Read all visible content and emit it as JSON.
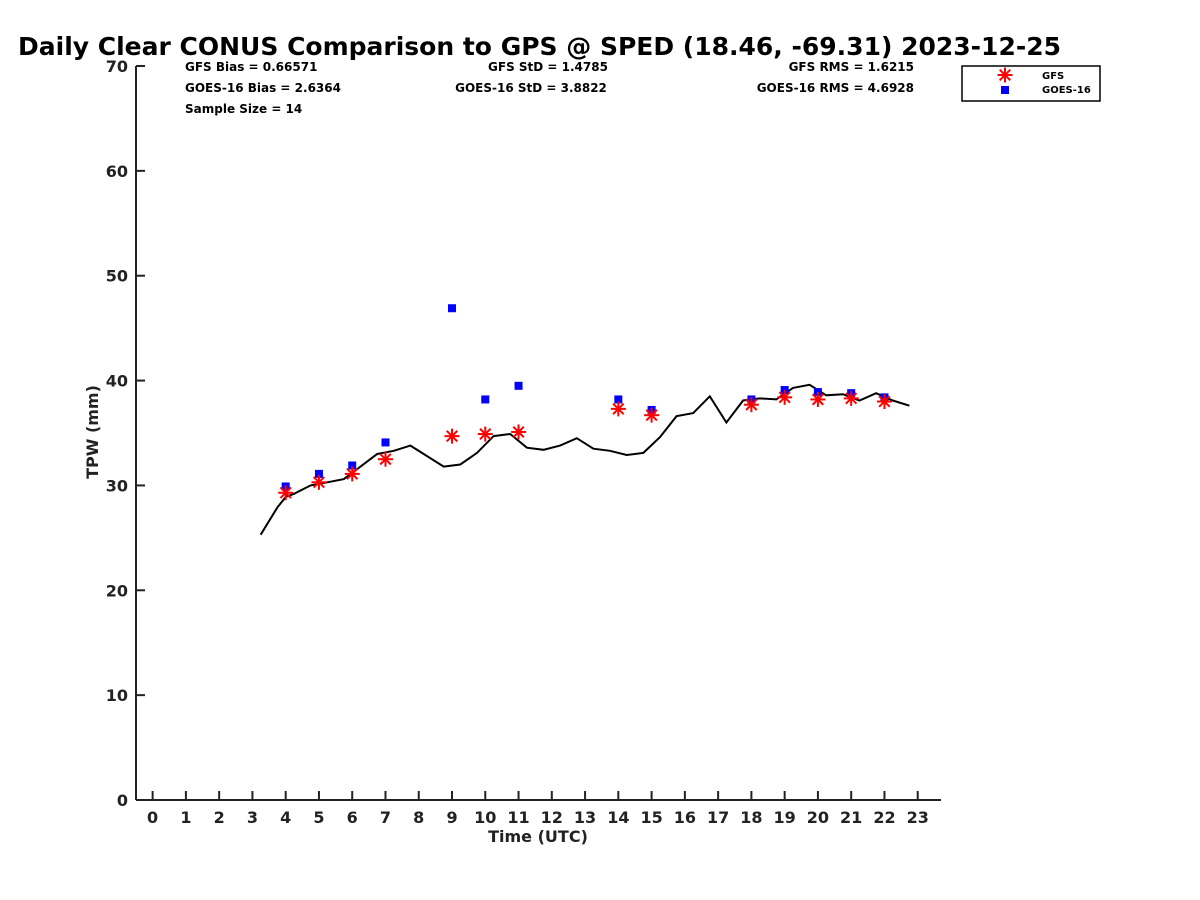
{
  "chart_data": {
    "type": "scatter",
    "title": "Daily Clear CONUS Comparison to GPS @ SPED (18.46, -69.31) 2023-12-25",
    "xlabel": "Time (UTC)",
    "ylabel": "TPW (mm)",
    "xlim": [
      -0.5,
      23.7
    ],
    "ylim": [
      0,
      70
    ],
    "x_ticks": [
      "0",
      "1",
      "2",
      "3",
      "4",
      "5",
      "6",
      "7",
      "8",
      "9",
      "10",
      "11",
      "12",
      "13",
      "14",
      "15",
      "16",
      "17",
      "18",
      "19",
      "20",
      "21",
      "22",
      "23"
    ],
    "y_ticks": [
      "0",
      "10",
      "20",
      "30",
      "40",
      "50",
      "60",
      "70"
    ],
    "grid": false,
    "legend_position": "top-right",
    "stats": {
      "gfs_bias": "GFS Bias = 0.66571",
      "goes_bias": "GOES-16 Bias = 2.6364",
      "sample_size": "Sample Size = 14",
      "gfs_std": "GFS StD = 1.4785",
      "goes_std": "GOES-16 StD = 3.8822",
      "gfs_rms": "GFS RMS = 1.6215",
      "goes_rms": "GOES-16 RMS = 4.6928"
    },
    "series": [
      {
        "name": "GFS",
        "marker": "asterisk",
        "color": "#ff0000",
        "x": [
          4,
          5,
          6,
          7,
          9,
          10,
          11,
          14,
          15,
          18,
          19,
          20,
          21,
          22
        ],
        "y": [
          29.3,
          30.3,
          31.1,
          32.5,
          34.7,
          34.9,
          35.1,
          37.3,
          36.7,
          37.7,
          38.4,
          38.2,
          38.3,
          38.0
        ]
      },
      {
        "name": "GOES-16",
        "marker": "square",
        "color": "#0000ff",
        "x": [
          4,
          5,
          6,
          7,
          9,
          10,
          11,
          14,
          15,
          18,
          19,
          20,
          21,
          22
        ],
        "y": [
          29.9,
          31.1,
          31.9,
          34.1,
          46.9,
          38.2,
          39.5,
          38.2,
          37.2,
          38.2,
          39.1,
          38.9,
          38.8,
          38.4
        ]
      },
      {
        "marker": "line",
        "color": "#000000",
        "x": [
          3.25,
          3.75,
          4.0,
          4.25,
          4.75,
          5.25,
          5.75,
          6.25,
          6.75,
          7.25,
          7.75,
          8.25,
          8.75,
          9.25,
          9.75,
          10.25,
          10.75,
          11.25,
          11.75,
          12.25,
          12.75,
          13.25,
          13.75,
          14.25,
          14.75,
          15.25,
          15.75,
          16.25,
          16.75,
          17.25,
          17.75,
          18.25,
          18.75,
          19.25,
          19.75,
          20.25,
          20.75,
          21.25,
          21.75,
          22.25,
          22.75
        ],
        "y": [
          25.3,
          27.9,
          28.9,
          29.2,
          30.0,
          30.3,
          30.6,
          31.8,
          33.0,
          33.3,
          33.8,
          32.8,
          31.8,
          32.0,
          33.1,
          34.7,
          34.9,
          33.6,
          33.4,
          33.8,
          34.5,
          33.5,
          33.3,
          32.9,
          33.1,
          34.6,
          36.6,
          36.9,
          38.5,
          36.0,
          38.1,
          38.3,
          38.2,
          39.3,
          39.6,
          38.6,
          38.7,
          38.1,
          38.8,
          38.1,
          37.6
        ]
      }
    ]
  }
}
